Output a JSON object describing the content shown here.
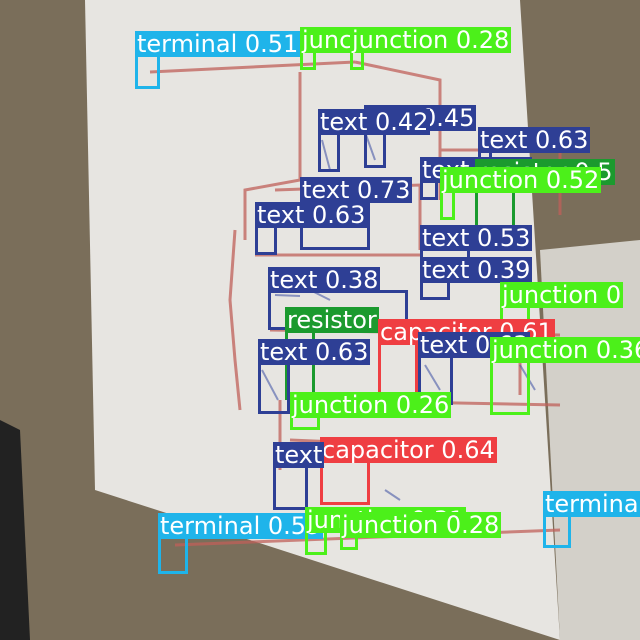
{
  "colors": {
    "terminal": "#1fb4ea",
    "junction": "#4cf01a",
    "text": "#2e3f95",
    "resistor": "#1b9a2e",
    "capacitor": "#ef3e42"
  },
  "detections": [
    {
      "cls": "terminal",
      "label": "terminal 0.51"
    },
    {
      "cls": "junction",
      "label": "junction 0.39"
    },
    {
      "cls": "junction",
      "label": "junction 0.28"
    },
    {
      "cls": "text",
      "label": "text 0.45"
    },
    {
      "cls": "text",
      "label": "text 0.42"
    },
    {
      "cls": "text",
      "label": "text 0.63"
    },
    {
      "cls": "text",
      "label": "text 0.40"
    },
    {
      "cls": "resistor",
      "label": "resistor 0.5"
    },
    {
      "cls": "junction",
      "label": "junction 0.52"
    },
    {
      "cls": "text",
      "label": "text 0.73"
    },
    {
      "cls": "text",
      "label": "text 0.63"
    },
    {
      "cls": "text",
      "label": "text 0.53"
    },
    {
      "cls": "text",
      "label": "text 0.38"
    },
    {
      "cls": "text",
      "label": "text 0.39"
    },
    {
      "cls": "junction",
      "label": "junction 0"
    },
    {
      "cls": "resistor",
      "label": "resistor"
    },
    {
      "cls": "capacitor",
      "label": "capacitor 0.61"
    },
    {
      "cls": "text",
      "label": "text 0.63"
    },
    {
      "cls": "text",
      "label": "text 0.63"
    },
    {
      "cls": "junction",
      "label": "junction 0.36"
    },
    {
      "cls": "junction",
      "label": "junction 0.26"
    },
    {
      "cls": "capacitor",
      "label": "capacitor 0.64"
    },
    {
      "cls": "text",
      "label": "text"
    },
    {
      "cls": "terminal",
      "label": "terminal 0.59"
    },
    {
      "cls": "junction",
      "label": "junction 0.31"
    },
    {
      "cls": "junction",
      "label": "junction 0.28"
    },
    {
      "cls": "terminal",
      "label": "terminal"
    }
  ]
}
